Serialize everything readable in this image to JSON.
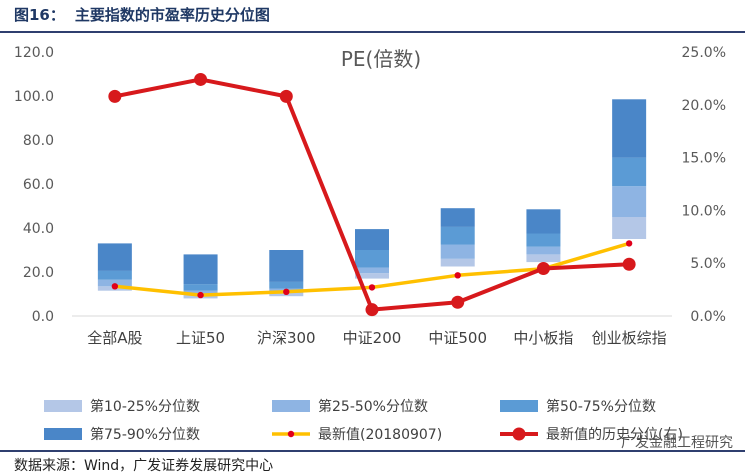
{
  "figure": {
    "label": "图16：",
    "title": "主要指数的市盈率历史分位图",
    "source": "数据来源：Wind，广发证券发展研究中心",
    "watermark": "广发金融工程研究"
  },
  "chart_data": {
    "type": "bar",
    "title": "PE(倍数)",
    "categories": [
      "全部A股",
      "上证50",
      "沪深300",
      "中证200",
      "中证500",
      "中小板指",
      "创业板综指"
    ],
    "y_left": {
      "min": 0,
      "max": 120,
      "step": 20,
      "tick_labels": [
        "0.0",
        "20.0",
        "40.0",
        "60.0",
        "80.0",
        "100.0",
        "120.0"
      ]
    },
    "y_right": {
      "min": 0,
      "max": 25,
      "step": 5,
      "tick_labels": [
        "0.0%",
        "5.0%",
        "10.0%",
        "15.0%",
        "20.0%",
        "25.0%"
      ]
    },
    "percentile_bands": [
      {
        "p10": 11.5,
        "p25": 13.5,
        "p50": 16.5,
        "p75": 20.5,
        "p90": 33
      },
      {
        "p10": 8,
        "p25": 9.5,
        "p50": 11.5,
        "p75": 14.5,
        "p90": 28
      },
      {
        "p10": 9,
        "p25": 10.5,
        "p50": 12.5,
        "p75": 15.5,
        "p90": 30
      },
      {
        "p10": 17,
        "p25": 19.5,
        "p50": 22,
        "p75": 30,
        "p90": 39.5
      },
      {
        "p10": 22.5,
        "p25": 26,
        "p50": 32.5,
        "p75": 40.5,
        "p90": 49
      },
      {
        "p10": 24.5,
        "p25": 28,
        "p50": 31.5,
        "p75": 37.5,
        "p90": 48.5
      },
      {
        "p10": 35,
        "p25": 45,
        "p50": 59,
        "p75": 72,
        "p90": 98.5
      }
    ],
    "series": [
      {
        "name": "第10-25%分位数",
        "color": "#b4c7e7"
      },
      {
        "name": "第25-50%分位数",
        "color": "#8eb4e3"
      },
      {
        "name": "第50-75%分位数",
        "color": "#5b9bd5"
      },
      {
        "name": "第75-90%分位数",
        "color": "#4a86c8"
      },
      {
        "name": "最新值(20180907)",
        "axis": "left",
        "color": "#ffc000",
        "marker_color": "#e0001b",
        "values": [
          13.5,
          9.5,
          11,
          13,
          18.5,
          21.5,
          33
        ]
      },
      {
        "name": "最新值的历史分位(右)",
        "axis": "right",
        "color": "#d7191c",
        "values": [
          20.8,
          22.4,
          20.8,
          0.6,
          1.3,
          4.5,
          4.9
        ]
      }
    ]
  }
}
